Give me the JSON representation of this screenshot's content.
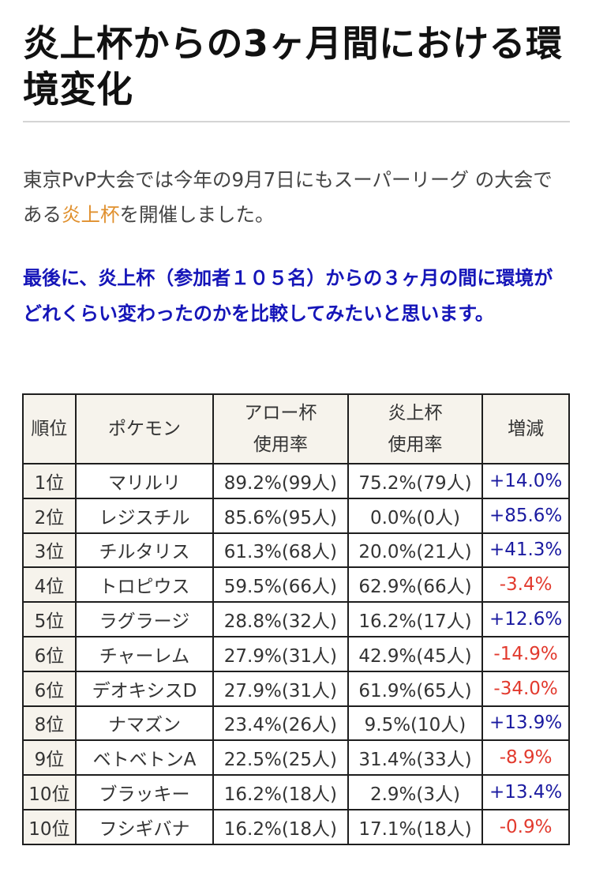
{
  "article": {
    "title": "炎上杯からの3ヶ月間における環境変化",
    "intro": {
      "before_link": "東京PvP大会では今年の9月7日にもスーパーリーグ の大会である",
      "link_text": "炎上杯",
      "after_link": "を開催しました。"
    },
    "highlight": "最後に、炎上杯（参加者１０５名）からの３ヶ月の間に環境がどれくらい変わったのかを比較してみたいと思います。"
  },
  "table": {
    "headers": {
      "rank": "順位",
      "pokemon": "ポケモン",
      "arrow_line1": "アロー杯",
      "arrow_line2": "使用率",
      "enjo_line1": "炎上杯",
      "enjo_line2": "使用率",
      "change": "増減"
    },
    "rows": [
      {
        "rank": "1位",
        "pokemon": "マリルリ",
        "arrow": "89.2%(99人)",
        "enjo": "75.2%(79人)",
        "change": "+14.0%",
        "trend": "pos"
      },
      {
        "rank": "2位",
        "pokemon": "レジスチル",
        "arrow": "85.6%(95人)",
        "enjo": "0.0%(0人)",
        "change": "+85.6%",
        "trend": "pos"
      },
      {
        "rank": "3位",
        "pokemon": "チルタリス",
        "arrow": "61.3%(68人)",
        "enjo": "20.0%(21人)",
        "change": "+41.3%",
        "trend": "pos"
      },
      {
        "rank": "4位",
        "pokemon": "トロピウス",
        "arrow": "59.5%(66人)",
        "enjo": "62.9%(66人)",
        "change": "-3.4%",
        "trend": "neg"
      },
      {
        "rank": "5位",
        "pokemon": "ラグラージ",
        "arrow": "28.8%(32人)",
        "enjo": "16.2%(17人)",
        "change": "+12.6%",
        "trend": "pos"
      },
      {
        "rank": "6位",
        "pokemon": "チャーレム",
        "arrow": "27.9%(31人)",
        "enjo": "42.9%(45人)",
        "change": "-14.9%",
        "trend": "neg"
      },
      {
        "rank": "6位",
        "pokemon": "デオキシスD",
        "arrow": "27.9%(31人)",
        "enjo": "61.9%(65人)",
        "change": "-34.0%",
        "trend": "neg"
      },
      {
        "rank": "8位",
        "pokemon": "ナマズン",
        "arrow": "23.4%(26人)",
        "enjo": "9.5%(10人)",
        "change": "+13.9%",
        "trend": "pos"
      },
      {
        "rank": "9位",
        "pokemon": "ベトベトンA",
        "arrow": "22.5%(25人)",
        "enjo": "31.4%(33人)",
        "change": "-8.9%",
        "trend": "neg"
      },
      {
        "rank": "10位",
        "pokemon": "ブラッキー",
        "arrow": "16.2%(18人)",
        "enjo": "2.9%(3人)",
        "change": "+13.4%",
        "trend": "pos"
      },
      {
        "rank": "10位",
        "pokemon": "フシギバナ",
        "arrow": "16.2%(18人)",
        "enjo": "17.1%(18人)",
        "change": "-0.9%",
        "trend": "neg"
      }
    ]
  },
  "colors": {
    "positive": "#1a1aa0",
    "negative": "#e23a2e",
    "link": "#e0902e",
    "highlight": "#1515b8",
    "header_bg": "#f6f3ec"
  }
}
